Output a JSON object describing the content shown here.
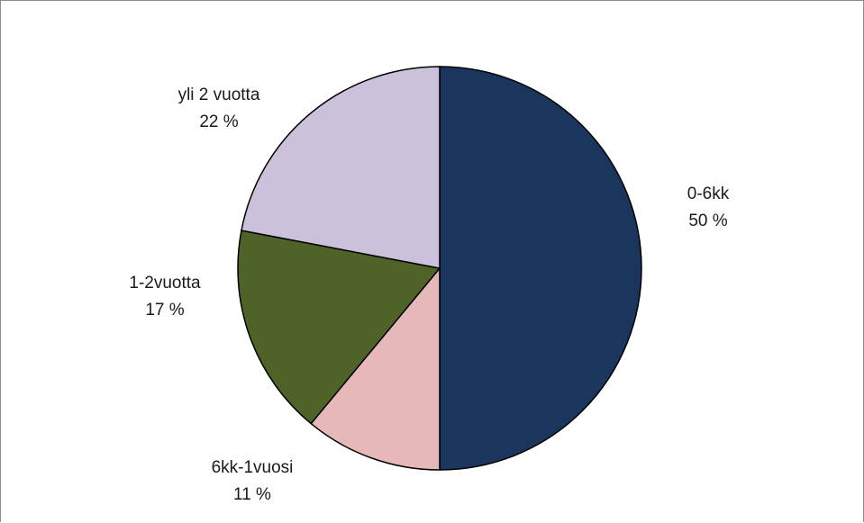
{
  "chart_data": {
    "type": "pie",
    "slices": [
      {
        "name": "0-6kk",
        "value": 50,
        "label": "50 %",
        "color": "#1a365d"
      },
      {
        "name": "6kk-1vuosi",
        "value": 11,
        "label": "11 %",
        "color": "#e6b9b8"
      },
      {
        "name": "1-2vuotta",
        "value": 17,
        "label": "17 %",
        "color": "#4f6228"
      },
      {
        "name": "yli 2 vuotta",
        "value": 22,
        "label": "22 %",
        "color": "#ccc1da"
      }
    ],
    "start_angle_deg": 0,
    "direction": "clockwise"
  }
}
